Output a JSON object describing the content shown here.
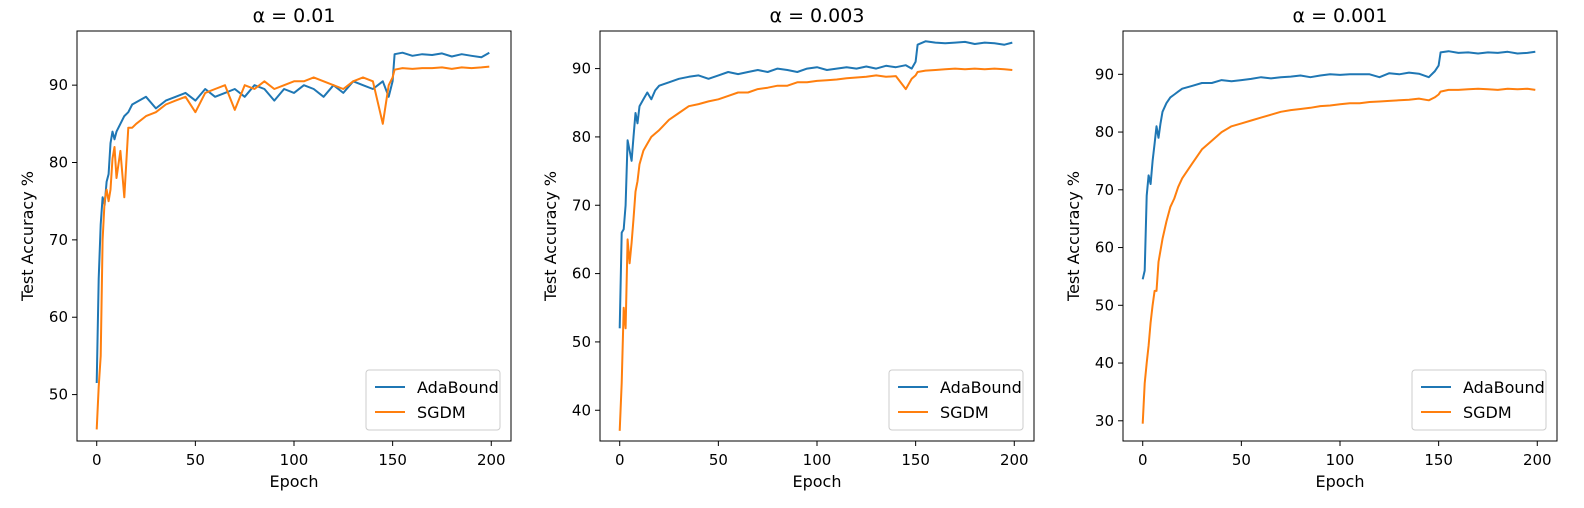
{
  "figure": {
    "panels": [
      {
        "title": "α = 0.01",
        "xlabel": "Epoch",
        "ylabel": "Test Accuracy %"
      },
      {
        "title": "α = 0.003",
        "xlabel": "Epoch",
        "ylabel": "Test Accuracy %"
      },
      {
        "title": "α = 0.001",
        "xlabel": "Epoch",
        "ylabel": "Test Accuracy %"
      }
    ],
    "colors": {
      "AdaBound": "#1f77b4",
      "SGDM": "#ff7f0e",
      "frame": "#000000"
    }
  },
  "chart_data": [
    {
      "type": "line",
      "title": "α = 0.01",
      "xlabel": "Epoch",
      "ylabel": "Test Accuracy %",
      "xlim": [
        -10,
        210
      ],
      "ylim": [
        44,
        97
      ],
      "xticks": [
        0,
        50,
        100,
        150,
        200
      ],
      "yticks": [
        50,
        60,
        70,
        80,
        90
      ],
      "legend": "lower-right",
      "grid": false,
      "x": [
        0,
        1,
        2,
        3,
        4,
        5,
        6,
        7,
        8,
        9,
        10,
        12,
        14,
        16,
        18,
        20,
        25,
        30,
        35,
        40,
        45,
        50,
        55,
        60,
        65,
        70,
        75,
        80,
        85,
        90,
        95,
        100,
        105,
        110,
        115,
        120,
        125,
        130,
        135,
        140,
        145,
        148,
        150,
        151,
        155,
        160,
        165,
        170,
        175,
        180,
        185,
        190,
        195,
        199
      ],
      "series": [
        {
          "name": "AdaBound",
          "values": [
            51.5,
            65.0,
            72.0,
            75.5,
            74.5,
            77.5,
            78.5,
            82.5,
            84.0,
            83.0,
            84.0,
            85.0,
            86.0,
            86.5,
            87.5,
            87.8,
            88.5,
            87.0,
            88.0,
            88.5,
            89.0,
            88.0,
            89.5,
            88.5,
            89.0,
            89.5,
            88.5,
            90.0,
            89.5,
            88.0,
            89.5,
            89.0,
            90.0,
            89.5,
            88.5,
            90.0,
            89.0,
            90.5,
            90.0,
            89.5,
            90.5,
            88.5,
            90.5,
            94.0,
            94.2,
            93.8,
            94.0,
            93.9,
            94.1,
            93.7,
            94.0,
            93.8,
            93.6,
            94.2
          ]
        },
        {
          "name": "SGDM",
          "values": [
            45.5,
            51.0,
            55.0,
            70.0,
            75.0,
            76.5,
            75.0,
            76.5,
            80.5,
            82.0,
            78.0,
            81.5,
            75.5,
            84.5,
            84.5,
            85.0,
            86.0,
            86.5,
            87.5,
            88.0,
            88.5,
            86.5,
            89.0,
            89.5,
            90.0,
            86.8,
            90.0,
            89.5,
            90.5,
            89.5,
            90.0,
            90.5,
            90.5,
            91.0,
            90.5,
            90.0,
            89.5,
            90.5,
            91.0,
            90.5,
            85.0,
            90.0,
            91.0,
            92.0,
            92.2,
            92.1,
            92.2,
            92.2,
            92.3,
            92.1,
            92.3,
            92.2,
            92.3,
            92.4
          ]
        }
      ]
    },
    {
      "type": "line",
      "title": "α = 0.003",
      "xlabel": "Epoch",
      "ylabel": "Test Accuracy %",
      "xlim": [
        -10,
        210
      ],
      "ylim": [
        35.5,
        95.5
      ],
      "xticks": [
        0,
        50,
        100,
        150,
        200
      ],
      "yticks": [
        40,
        50,
        60,
        70,
        80,
        90
      ],
      "legend": "lower-right",
      "grid": false,
      "x": [
        0,
        1,
        2,
        3,
        4,
        5,
        6,
        7,
        8,
        9,
        10,
        12,
        14,
        16,
        18,
        20,
        25,
        30,
        35,
        40,
        45,
        50,
        55,
        60,
        65,
        70,
        75,
        80,
        85,
        90,
        95,
        100,
        105,
        110,
        115,
        120,
        125,
        130,
        135,
        140,
        145,
        148,
        150,
        151,
        155,
        160,
        165,
        170,
        175,
        180,
        185,
        190,
        195,
        199
      ],
      "series": [
        {
          "name": "AdaBound",
          "values": [
            52.0,
            66.0,
            66.5,
            70.0,
            79.5,
            78.0,
            76.5,
            80.0,
            83.5,
            82.0,
            84.5,
            85.5,
            86.5,
            85.5,
            86.8,
            87.5,
            88.0,
            88.5,
            88.8,
            89.0,
            88.5,
            89.0,
            89.5,
            89.2,
            89.5,
            89.8,
            89.5,
            90.0,
            89.8,
            89.5,
            90.0,
            90.2,
            89.8,
            90.0,
            90.2,
            90.0,
            90.3,
            90.0,
            90.4,
            90.2,
            90.5,
            90.0,
            91.0,
            93.5,
            94.0,
            93.8,
            93.7,
            93.8,
            93.9,
            93.6,
            93.8,
            93.7,
            93.5,
            93.8
          ]
        },
        {
          "name": "SGDM",
          "values": [
            37.0,
            44.0,
            55.0,
            52.0,
            65.0,
            61.5,
            64.5,
            68.0,
            72.0,
            73.5,
            76.0,
            78.0,
            79.0,
            80.0,
            80.5,
            81.0,
            82.5,
            83.5,
            84.5,
            84.8,
            85.2,
            85.5,
            86.0,
            86.5,
            86.5,
            87.0,
            87.2,
            87.5,
            87.5,
            88.0,
            88.0,
            88.2,
            88.3,
            88.4,
            88.6,
            88.7,
            88.8,
            89.0,
            88.8,
            88.9,
            87.0,
            88.5,
            89.0,
            89.5,
            89.7,
            89.8,
            89.9,
            90.0,
            89.9,
            90.0,
            89.9,
            90.0,
            89.9,
            89.8
          ]
        }
      ]
    },
    {
      "type": "line",
      "title": "α = 0.001",
      "xlabel": "Epoch",
      "ylabel": "Test Accuracy %",
      "xlim": [
        -10,
        210
      ],
      "ylim": [
        26.5,
        97.5
      ],
      "xticks": [
        0,
        50,
        100,
        150,
        200
      ],
      "yticks": [
        30,
        40,
        50,
        60,
        70,
        80,
        90
      ],
      "legend": "lower-right",
      "grid": false,
      "x": [
        0,
        1,
        2,
        3,
        4,
        5,
        6,
        7,
        8,
        9,
        10,
        12,
        14,
        16,
        18,
        20,
        25,
        30,
        35,
        40,
        45,
        50,
        55,
        60,
        65,
        70,
        75,
        80,
        85,
        90,
        95,
        100,
        105,
        110,
        115,
        120,
        125,
        130,
        135,
        140,
        145,
        148,
        150,
        151,
        155,
        160,
        165,
        170,
        175,
        180,
        185,
        190,
        195,
        199
      ],
      "series": [
        {
          "name": "AdaBound",
          "values": [
            54.5,
            56.0,
            69.0,
            72.5,
            71.0,
            75.0,
            78.0,
            81.0,
            79.0,
            81.5,
            83.5,
            85.0,
            86.0,
            86.5,
            87.0,
            87.5,
            88.0,
            88.5,
            88.5,
            89.0,
            88.8,
            89.0,
            89.2,
            89.5,
            89.3,
            89.5,
            89.6,
            89.8,
            89.5,
            89.8,
            90.0,
            89.9,
            90.0,
            90.0,
            90.0,
            89.5,
            90.2,
            90.0,
            90.3,
            90.1,
            89.5,
            90.5,
            91.5,
            93.8,
            94.0,
            93.7,
            93.8,
            93.6,
            93.8,
            93.7,
            93.9,
            93.6,
            93.7,
            93.9
          ]
        },
        {
          "name": "SGDM",
          "values": [
            29.5,
            36.5,
            40.0,
            43.0,
            47.0,
            50.0,
            52.5,
            52.5,
            57.5,
            59.5,
            61.5,
            64.5,
            67.0,
            68.5,
            70.5,
            72.0,
            74.5,
            77.0,
            78.5,
            80.0,
            81.0,
            81.5,
            82.0,
            82.5,
            83.0,
            83.5,
            83.8,
            84.0,
            84.2,
            84.5,
            84.6,
            84.8,
            85.0,
            85.0,
            85.2,
            85.3,
            85.4,
            85.5,
            85.6,
            85.8,
            85.5,
            86.0,
            86.5,
            87.0,
            87.3,
            87.3,
            87.4,
            87.5,
            87.4,
            87.3,
            87.5,
            87.4,
            87.5,
            87.3
          ]
        }
      ]
    }
  ]
}
